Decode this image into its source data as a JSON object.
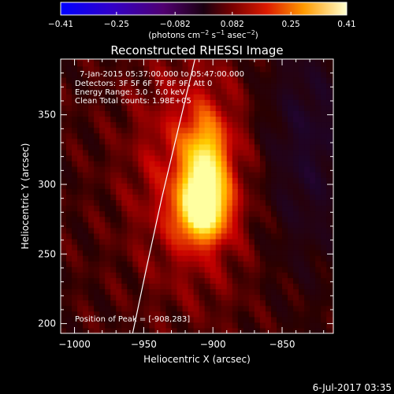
{
  "colorbar": {
    "ticks": [
      "−0.41",
      "−0.25",
      "−0.082",
      "0.082",
      "0.25",
      "0.41"
    ],
    "units_main": "(photons cm",
    "units_sup1": "−2",
    "units_mid": " s",
    "units_sup2": "−1",
    "units_mid2": " asec",
    "units_sup3": "−2",
    "units_end": ")"
  },
  "chart_data": {
    "type": "heatmap",
    "title": "Reconstructed RHESSI Image",
    "xlabel": "Heliocentric X (arcsec)",
    "ylabel": "Heliocentric Y (arcsec)",
    "xlim": [
      -1010,
      -813
    ],
    "ylim": [
      193,
      390
    ],
    "x_ticks": [
      -1000,
      -950,
      -900,
      -850
    ],
    "y_ticks": [
      200,
      250,
      300,
      350
    ],
    "x_tick_labels": [
      "−1000",
      "−950",
      "−900",
      "−850"
    ],
    "y_tick_labels": [
      "200",
      "250",
      "300",
      "350"
    ],
    "colorbar_range": [
      -0.41,
      0.41
    ],
    "peak": {
      "x": -908,
      "y": 283
    },
    "limb": [
      [
        -958,
        193
      ],
      [
        -948,
        240
      ],
      [
        -937,
        290
      ],
      [
        -925,
        340
      ],
      [
        -913,
        390
      ]
    ],
    "annotations": [
      "7-Jan-2015 05:37:00.000 to 05:47:00.000",
      "Detectors: 3F 5F 6F 7F 8F 9F, Att 0",
      "Energy Range: 3.0 - 6.0 keV",
      "Clean     Total counts: 1.98E+05"
    ],
    "peak_label": "Position of Peak = [-908,283]"
  },
  "footer": {
    "timestamp": "6-Jul-2017 03:35"
  },
  "colors": {
    "background": "#000000",
    "foreground": "#ffffff",
    "colormap": [
      "#0000ff",
      "#3a00c8",
      "#5a0078",
      "#1e0428",
      "#2a0000",
      "#c80000",
      "#ff7800",
      "#ffd000",
      "#ffffa0"
    ]
  }
}
